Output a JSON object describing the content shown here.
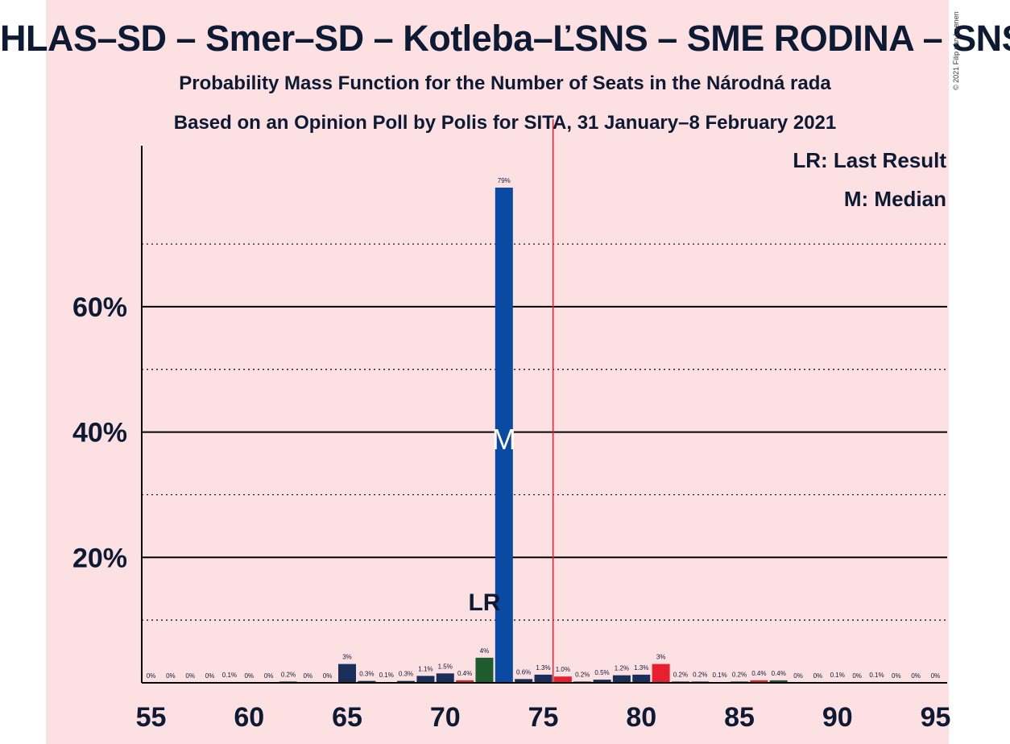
{
  "title": "HLAS–SD – Smer–SD – Kotleba–ĽSNS – SME RODINA – SNS",
  "subtitle": "Probability Mass Function for the Number of Seats in the Národná rada",
  "subtitle2": "Based on an Opinion Poll by Polis for SITA, 31 January–8 February 2021",
  "copyright": "© 2021 Filip van Laenen",
  "legend": {
    "lr": "LR: Last Result",
    "m": "M: Median"
  },
  "colors": {
    "background": "#fde0e2",
    "navy": "#1a2e5a",
    "blue": "#0a4aa3",
    "red": "#e8202e",
    "green": "#1e5b2e",
    "majority_line": "#e8202e"
  },
  "chart_data": {
    "type": "bar",
    "x": [
      55,
      56,
      57,
      58,
      59,
      60,
      61,
      62,
      63,
      64,
      65,
      66,
      67,
      68,
      69,
      70,
      71,
      72,
      73,
      74,
      75,
      76,
      77,
      78,
      79,
      80,
      81,
      82,
      83,
      84,
      85,
      86,
      87,
      88,
      89,
      90,
      91,
      92,
      93,
      94,
      95
    ],
    "values": [
      0,
      0,
      0,
      0,
      0.1,
      0,
      0,
      0.2,
      0,
      0,
      3,
      0.3,
      0.1,
      0.3,
      1.1,
      1.5,
      0.4,
      4,
      79,
      0.6,
      1.3,
      1.0,
      0.2,
      0.5,
      1.2,
      1.3,
      3,
      0.2,
      0.2,
      0.1,
      0.2,
      0.4,
      0.4,
      0,
      0,
      0.1,
      0,
      0.1,
      0,
      0,
      0
    ],
    "labels": [
      "0%",
      "0%",
      "0%",
      "0%",
      "0.1%",
      "0%",
      "0%",
      "0.2%",
      "0%",
      "0%",
      "3%",
      "0.3%",
      "0.1%",
      "0.3%",
      "1.1%",
      "1.5%",
      "0.4%",
      "4%",
      "79%",
      "0.6%",
      "1.3%",
      "1.0%",
      "0.2%",
      "0.5%",
      "1.2%",
      "1.3%",
      "3%",
      "0.2%",
      "0.2%",
      "0.1%",
      "0.2%",
      "0.4%",
      "0.4%",
      "0%",
      "0%",
      "0.1%",
      "0%",
      "0.1%",
      "0%",
      "0%",
      "0%"
    ],
    "bar_colors": [
      "navy",
      "navy",
      "navy",
      "navy",
      "navy",
      "navy",
      "navy",
      "navy",
      "navy",
      "navy",
      "navy",
      "navy",
      "navy",
      "navy",
      "navy",
      "navy",
      "red",
      "green",
      "blue",
      "navy",
      "navy",
      "red",
      "navy",
      "navy",
      "navy",
      "navy",
      "red",
      "navy",
      "navy",
      "navy",
      "navy",
      "red",
      "green",
      "navy",
      "navy",
      "navy",
      "navy",
      "navy",
      "navy",
      "navy",
      "navy"
    ],
    "ylim": [
      0,
      86
    ],
    "xlim": [
      55,
      95
    ],
    "yticks_labeled": [
      20,
      40,
      60
    ],
    "yticks_labels": [
      "20%",
      "40%",
      "60%"
    ],
    "yticks_dotted": [
      10,
      30,
      50,
      70
    ],
    "xticks": [
      55,
      60,
      65,
      70,
      75,
      80,
      85,
      90,
      95
    ],
    "xtick_labels": [
      "55",
      "60",
      "65",
      "70",
      "75",
      "80",
      "85",
      "90",
      "95"
    ],
    "last_result": 72,
    "last_result_label": "LR",
    "median": 73,
    "median_label": "M",
    "majority_threshold": 75.5
  }
}
